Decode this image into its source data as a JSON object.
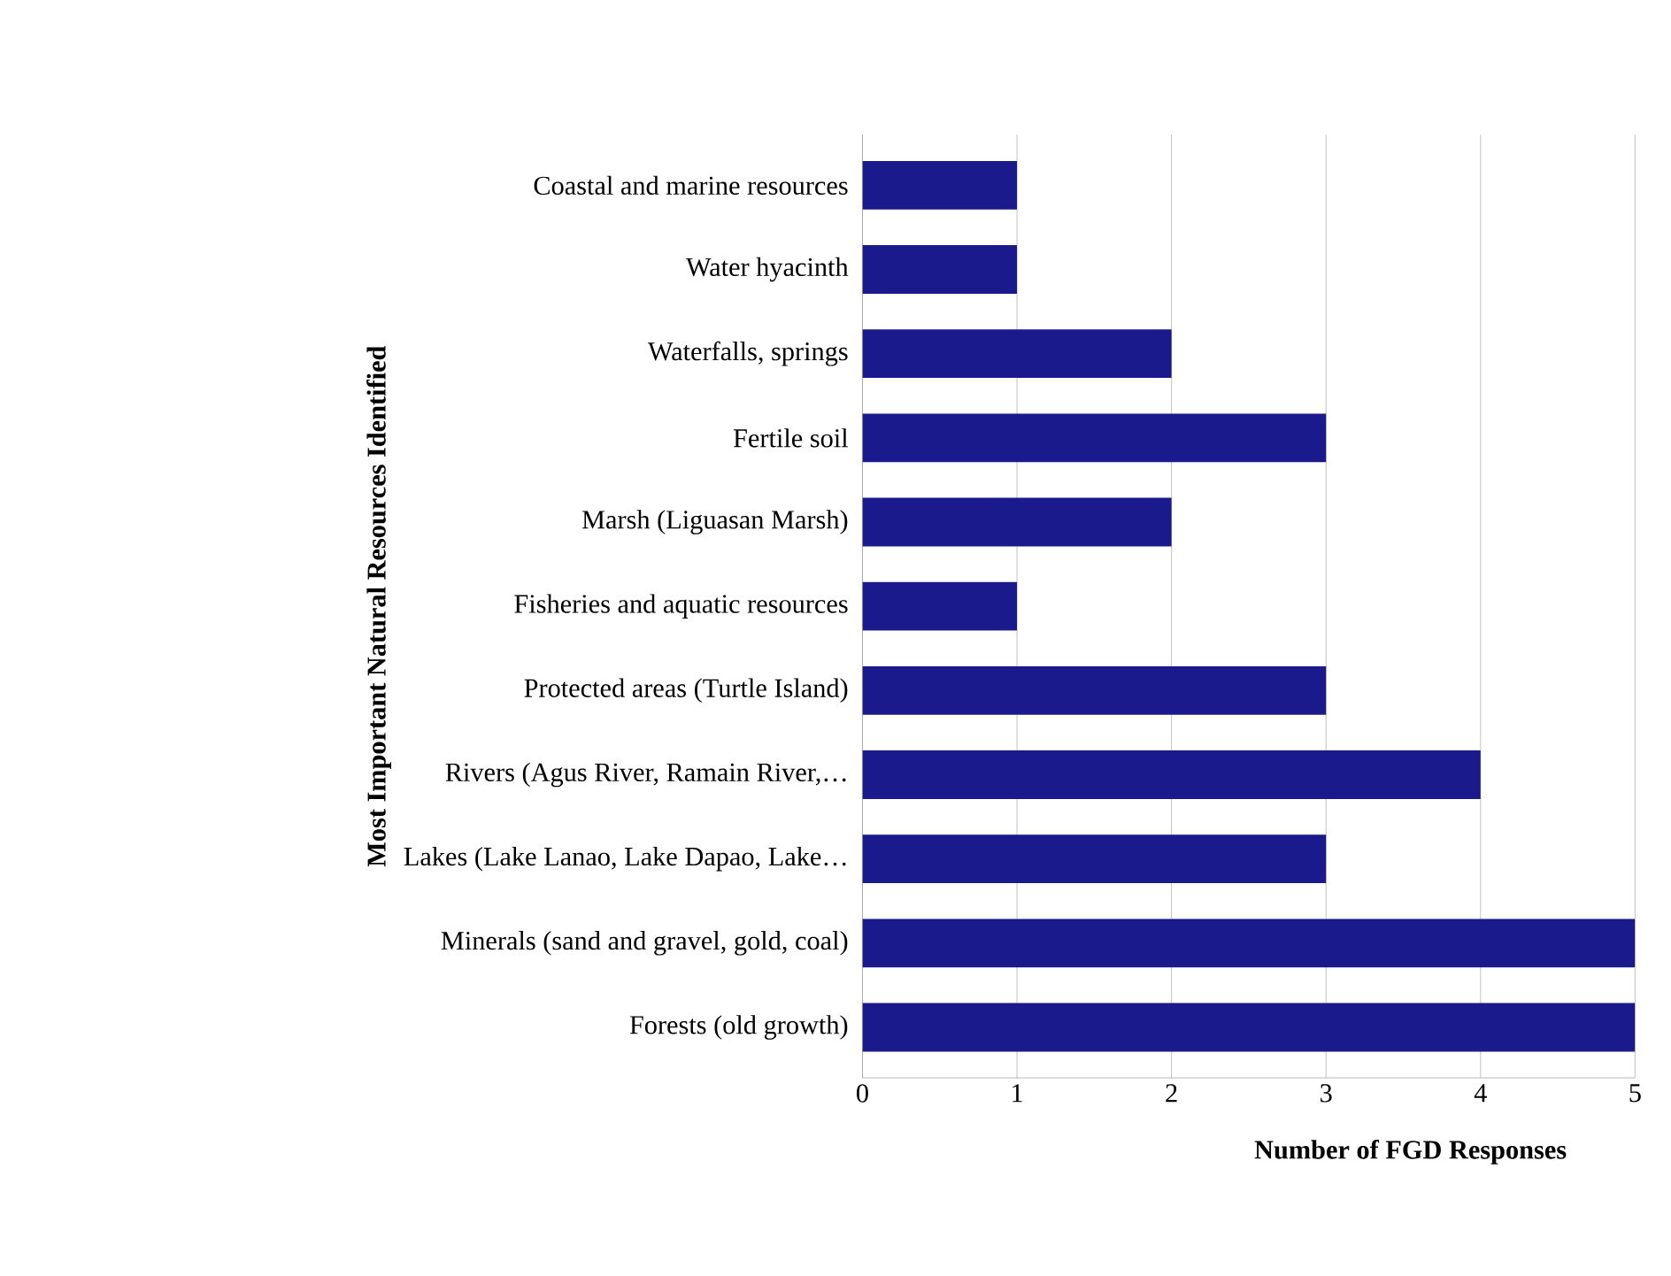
{
  "chart_data": {
    "type": "bar",
    "orientation": "horizontal",
    "xlabel": "Number of FGD Responses",
    "ylabel": "Most Important Natural Resources Identified",
    "categories": [
      "Coastal and marine resources",
      "Water hyacinth",
      "Waterfalls, springs",
      "Fertile soil",
      "Marsh (Liguasan Marsh)",
      "Fisheries and aquatic resources",
      "Protected areas (Turtle Island)",
      "Rivers (Agus River, Ramain River,…",
      "Lakes (Lake Lanao, Lake Dapao, Lake…",
      "Minerals (sand and gravel, gold, coal)",
      "Forests (old growth)"
    ],
    "values": [
      1,
      1,
      2,
      3,
      2,
      1,
      3,
      4,
      3,
      5,
      5
    ],
    "color": "#1a1a8c",
    "xlim": [
      0,
      5
    ],
    "xticks": [
      0,
      1,
      2,
      3,
      4,
      5
    ],
    "grid": "x"
  }
}
